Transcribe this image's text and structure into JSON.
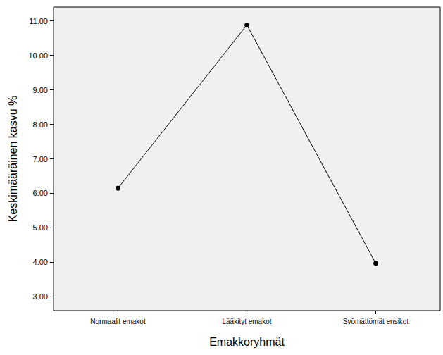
{
  "chart_data": {
    "type": "line",
    "x_label": "Emakkoryhmät",
    "y_label": "Keskimääräinen kasvu %",
    "categories": [
      "Normaalit emakot",
      "Lääkityt emakot",
      "Syömättömät ensikot"
    ],
    "values": [
      6.15,
      10.88,
      3.97
    ],
    "color": "#000000",
    "marker": "circle",
    "line_style": "solid",
    "ylim": [
      2.6,
      11.4
    ],
    "yticks": [
      {
        "value": 3,
        "label": "3.00"
      },
      {
        "value": 4,
        "label": "4.00"
      },
      {
        "value": 5,
        "label": "5.00"
      },
      {
        "value": 6,
        "label": "6.00"
      },
      {
        "value": 7,
        "label": "7.00"
      },
      {
        "value": 8,
        "label": "8.00"
      },
      {
        "value": 9,
        "label": "9.00"
      },
      {
        "value": 10,
        "label": "10.00"
      },
      {
        "value": 11,
        "label": "11.00"
      }
    ],
    "grid": false
  }
}
